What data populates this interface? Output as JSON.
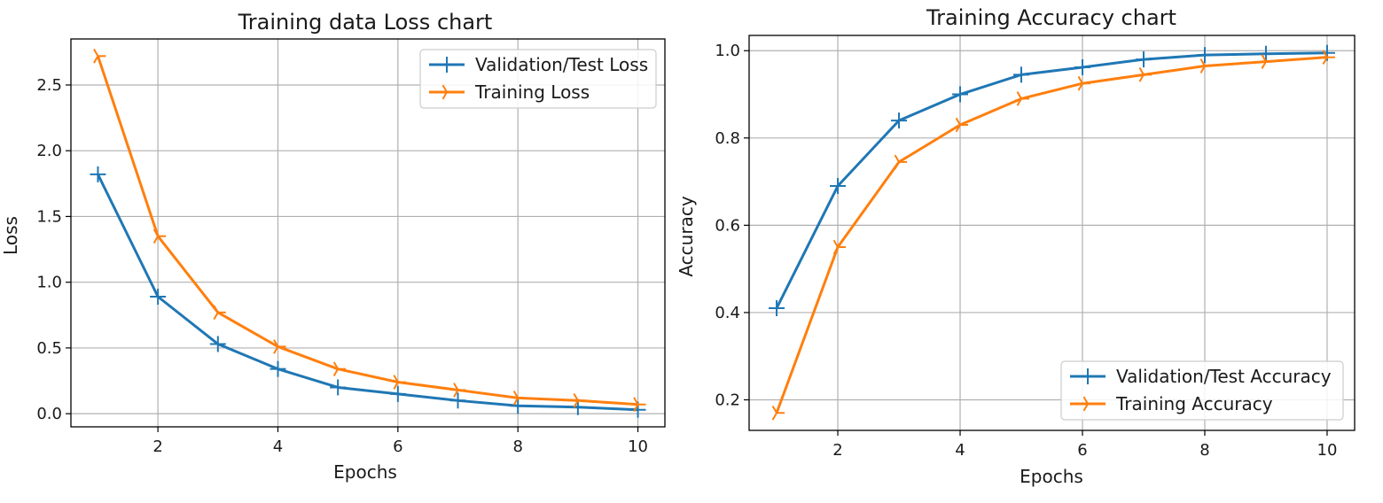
{
  "chart_data": [
    {
      "type": "line",
      "title": "Training data Loss chart",
      "xlabel": "Epochs",
      "ylabel": "Loss",
      "x": [
        1,
        2,
        3,
        4,
        5,
        6,
        7,
        8,
        9,
        10
      ],
      "xticks": [
        2,
        4,
        6,
        8,
        10
      ],
      "yticks": [
        0.0,
        0.5,
        1.0,
        1.5,
        2.0,
        2.5
      ],
      "ytick_decimals": 1,
      "xlim": [
        0.55,
        10.45
      ],
      "ylim": [
        -0.1,
        2.85
      ],
      "grid": true,
      "legend_position": "top-right",
      "series": [
        {
          "name": "Validation/Test Loss",
          "color": "#1f77b4",
          "marker": "plus",
          "values": [
            1.82,
            0.89,
            0.53,
            0.34,
            0.2,
            0.15,
            0.1,
            0.06,
            0.05,
            0.03
          ]
        },
        {
          "name": "Training Loss",
          "color": "#ff7f0e",
          "marker": "tri_right",
          "values": [
            2.72,
            1.35,
            0.77,
            0.51,
            0.34,
            0.24,
            0.18,
            0.12,
            0.1,
            0.07
          ]
        }
      ]
    },
    {
      "type": "line",
      "title": "Training Accuracy chart",
      "xlabel": "Epochs",
      "ylabel": "Accuracy",
      "x": [
        1,
        2,
        3,
        4,
        5,
        6,
        7,
        8,
        9,
        10
      ],
      "xticks": [
        2,
        4,
        6,
        8,
        10
      ],
      "yticks": [
        0.2,
        0.4,
        0.6,
        0.8,
        1.0
      ],
      "ytick_decimals": 1,
      "xlim": [
        0.55,
        10.45
      ],
      "ylim": [
        0.13,
        1.035
      ],
      "grid": true,
      "legend_position": "bottom-right",
      "series": [
        {
          "name": "Validation/Test Accuracy",
          "color": "#1f77b4",
          "marker": "plus",
          "values": [
            0.41,
            0.69,
            0.84,
            0.9,
            0.945,
            0.962,
            0.98,
            0.99,
            0.993,
            0.995
          ]
        },
        {
          "name": "Training Accuracy",
          "color": "#ff7f0e",
          "marker": "tri_right",
          "values": [
            0.17,
            0.55,
            0.745,
            0.83,
            0.89,
            0.925,
            0.945,
            0.965,
            0.975,
            0.985
          ]
        }
      ]
    }
  ]
}
